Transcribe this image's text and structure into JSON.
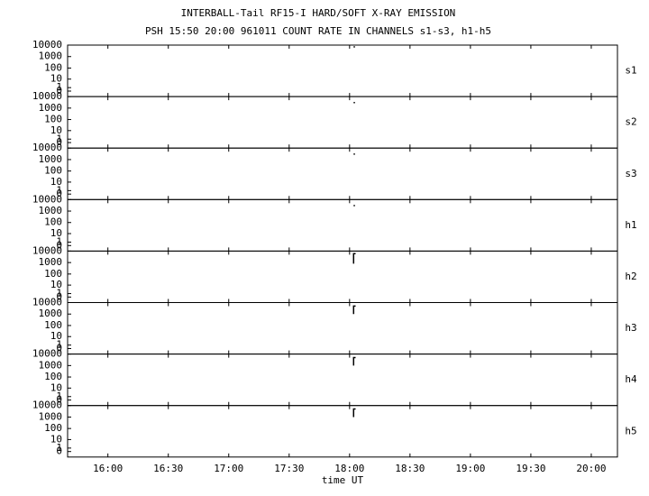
{
  "chart_data": {
    "type": "line",
    "title": "INTERBALL-Tail RF15-I HARD/SOFT X-RAY EMISSION",
    "subtitle": "PSH 15:50 20:00 961011  COUNT RATE IN CHANNELS s1-s3, h1-h5",
    "xlabel": "time UT",
    "xlim": [
      "15:40",
      "20:13"
    ],
    "xticks": [
      "16:00",
      "16:30",
      "17:00",
      "17:30",
      "18:00",
      "18:30",
      "19:00",
      "19:30",
      "20:00"
    ],
    "ylim": [
      0,
      10000
    ],
    "yticks": [
      0,
      1,
      10,
      100,
      1000,
      10000
    ],
    "log_scale": true,
    "color": "#000000",
    "series": [
      {
        "name": "s1",
        "x": [
          "18:02"
        ],
        "values": [
          7000
        ]
      },
      {
        "name": "s2",
        "x": [
          "18:02"
        ],
        "values": [
          3000
        ]
      },
      {
        "name": "s3",
        "x": [
          "18:02"
        ],
        "values": [
          3000
        ]
      },
      {
        "name": "h1",
        "x": [
          "18:02"
        ],
        "values": [
          3000
        ]
      },
      {
        "name": "h2",
        "x": [
          "18:02",
          "18:02",
          "18:03"
        ],
        "values": [
          800,
          6000,
          6000
        ]
      },
      {
        "name": "h3",
        "x": [
          "18:02",
          "18:02",
          "18:03"
        ],
        "values": [
          1000,
          5000,
          5000
        ]
      },
      {
        "name": "h4",
        "x": [
          "18:02",
          "18:02",
          "18:03"
        ],
        "values": [
          1000,
          5000,
          5000
        ]
      },
      {
        "name": "h5",
        "x": [
          "18:02",
          "18:02",
          "18:03"
        ],
        "values": [
          1000,
          5000,
          5000
        ]
      }
    ]
  }
}
